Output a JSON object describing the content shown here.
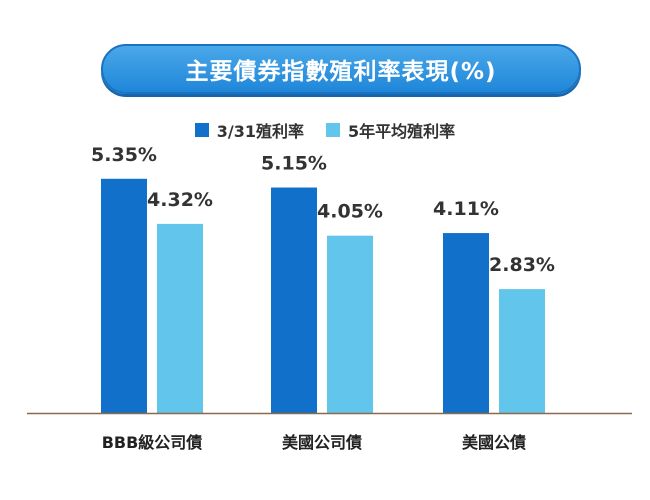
{
  "chart_data": {
    "type": "bar",
    "title": "主要債券指數殖利率表現(%)",
    "categories": [
      "BBB級公司債",
      "美國公司債",
      "美國公債"
    ],
    "series": [
      {
        "name": "3/31殖利率",
        "values": [
          5.35,
          5.15,
          4.11
        ],
        "labels": [
          "5.35%",
          "5.15%",
          "4.11%"
        ]
      },
      {
        "name": "5年平均殖利率",
        "values": [
          4.32,
          4.05,
          2.83
        ],
        "labels": [
          "4.32%",
          "4.05%",
          "2.83%"
        ]
      }
    ],
    "ylim": [
      0,
      8.2
    ],
    "legend_position": "top-center",
    "grid": false
  },
  "colors": {
    "series_1": "#1170c9",
    "series_2": "#62c5ec",
    "axis": "#8b6a4a",
    "title_bg": "#2a90de"
  }
}
